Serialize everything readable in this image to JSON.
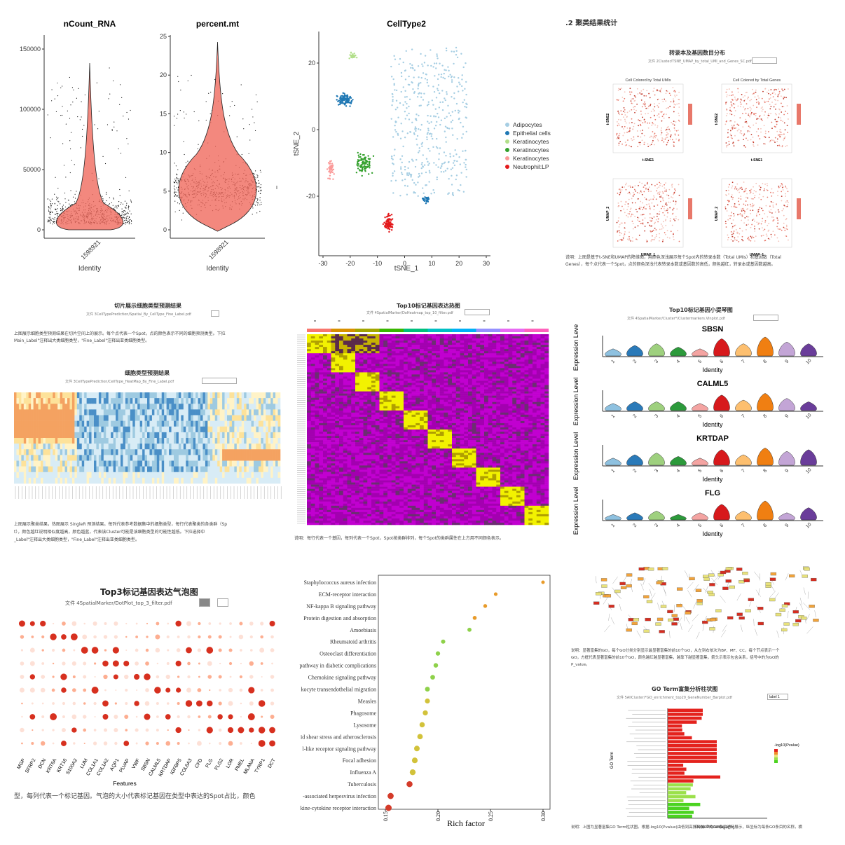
{
  "violin": {
    "panels": [
      {
        "title": "nCount_RNA",
        "yticks": [
          "150000",
          "100000",
          "50000",
          "0"
        ],
        "xtick": "1598921",
        "xlabel": "Identity"
      },
      {
        "title": "percent.mt",
        "yticks": [
          "25",
          "20",
          "15",
          "10",
          "5",
          "0"
        ],
        "xtick": "1598921",
        "xlabel": "Identity"
      }
    ],
    "color": "#f06a5e"
  },
  "tsne": {
    "title": "CellType2",
    "xlabel": "tSNE_1",
    "ylabel": "tSNE_2",
    "xticks": [
      "-30",
      "-20",
      "-10",
      "0",
      "10",
      "20",
      "30"
    ],
    "yticks": [
      "20",
      "0",
      "-20"
    ],
    "legend": [
      {
        "label": "Adipocytes",
        "color": "#a6cee3"
      },
      {
        "label": "Epithelial cells",
        "color": "#1f78b4"
      },
      {
        "label": "Keratinocytes",
        "color": "#b2df8a"
      },
      {
        "label": "Keratinocytes",
        "color": "#33a02c"
      },
      {
        "label": "Keratinocytes",
        "color": "#fb9a99"
      },
      {
        "label": "Neutrophil:LP",
        "color": "#e31a1c"
      }
    ]
  },
  "umap": {
    "section": ".2 聚类结果统计",
    "title": "转录本及基因数目分布",
    "file": "文件 2Cluster/TSNE_UMAP_by_total_UMI_and_Genes_SC.pdf",
    "sub_left": "Cell Colored by Total UMIs",
    "sub_right": "Cell Colored by Total Genes",
    "axis_tsne1": "t-SNE1",
    "axis_tsne2": "t-SNE2",
    "axis_umap1": "UMAP_1",
    "axis_umap2": "UMAP_2",
    "caption1": "说明：上图是基于t-SNE和UMAP的降维图，用颜色深浅展示每个Spot内的转录本数（Total UMIs）和基因数（Total",
    "caption2": "Genes），每个点代表一个Spot，点的颜色深浅代表转录本数或基因数的高低，颜色越红，转录本或基因数越高。"
  },
  "heatmap1": {
    "title1": "切片展示细胞类型预测结果",
    "file1": "文件 3CellTypePrediction/Spatial_By_CellType_Fine_Label.pdf",
    "desc1": "上图展示细胞类型预测结果在切片空间上的展示。每个点代表一个Spot，点的颜色表示不同的细胞预测类型。下拉",
    "desc2": "Main_Label\"注释出大类细胞类型，\"Fine_Label\"注释出亚类细胞类型。",
    "title2": "细胞类型预测结果",
    "file2": "文件 3CellTypePrediction/CellType_HeatMap_By_Fine_Label.pdf",
    "cap1": "上图展示聚类结果，热图展示 SingleR 预测结果。每列代表参考数据集中的细胞类型，每行代表聚类的各类群（Sp",
    "cap2": "t），颜色越红说明相似度越高，颜色越蓝，代表该Cluster可能是该细胞类型的可能性越低。下拉选择中",
    "cap3": "_Label\"注释出大类细胞类型，\"Fine_Label\"注释出亚类细胞类型。"
  },
  "heatmap2": {
    "title": "Top10标记基因表达热图",
    "file": "文件 4SpatialMarker/DoHeatmap_top_10_filter.pdf",
    "caption": "说明：每行代表一个基因，每列代表一个Spot，Spot按类群排列，每个Spot的类群属性在上方用不同颜色表示。",
    "cluster_colors": [
      "#f8766d",
      "#d89000",
      "#a3a500",
      "#39b600",
      "#00bf7d",
      "#00bfc4",
      "#00b0f6",
      "#9590ff",
      "#e76bf3",
      "#ff62bc"
    ]
  },
  "violins_small": {
    "title": "Top10标记基因小提琴图",
    "file": "文件 4SpatialMarker/Cluster*/Clustermarkers.Vlnplot.pdf",
    "ylabel": "Expression Level",
    "xlabel": "Identity",
    "genes": [
      "SBSN",
      "CALML5",
      "KRTDAP",
      "FLG"
    ],
    "clusters": [
      "1",
      "2",
      "3",
      "4",
      "5",
      "6",
      "7",
      "8",
      "9",
      "10"
    ],
    "colors": [
      "#8ec1e0",
      "#2a7ab9",
      "#9ed07e",
      "#2c9a3b",
      "#f4a4a2",
      "#d7191c",
      "#fdbf6f",
      "#f07f12",
      "#c3a5d6",
      "#6a3d9a"
    ]
  },
  "dotplot": {
    "title": "Top3标记基因表达气泡图",
    "file": "文件 4SpatialMarker/DotPlot_top_3_filter.pdf",
    "xlabel": "Features",
    "genes": [
      "MGP",
      "SFRP2",
      "DCN",
      "KRT6A",
      "KRT16",
      "S100A2",
      "LUM",
      "COL1A1",
      "COL1A2",
      "AQP1",
      "PLVAP",
      "VWF",
      "SBSN",
      "CALML5",
      "KRTDAP",
      "IGFBP5",
      "COL6A3",
      "CFD",
      "FLG",
      "FLG2",
      "LOR",
      "PMEL",
      "MLANA",
      "TYRP1",
      "DCT"
    ],
    "caption": "型，每列代表一个标记基因。气泡的大小代表标记基因在类型中表达的Spot占比，颜色"
  },
  "kegg": {
    "xlabel": "Rich factor",
    "xticks": [
      "0.15",
      "0.20",
      "0.25",
      "0.30"
    ],
    "pathways": [
      "Staphylococcus aureus infection",
      "ECM-receptor interaction",
      "NF-kappa B signaling pathway",
      "Protein digestion and absorption",
      "Amoebiasis",
      "Rheumatoid arthritis",
      "Osteoclast differentiation",
      "pathway in diabetic complications",
      "Chemokine signaling pathway",
      "kocyte transendothelial migration",
      "Measles",
      "Phagosome",
      "Lysosome",
      "id shear stress and atherosclerosis",
      "l-like receptor signaling pathway",
      "Focal adhesion",
      "Influenza A",
      "Tuberculosis",
      "-associated herpesvirus infection",
      "kine-cytokine receptor interaction"
    ],
    "rich": [
      0.3,
      0.255,
      0.245,
      0.235,
      0.23,
      0.205,
      0.2,
      0.198,
      0.195,
      0.19,
      0.19,
      0.188,
      0.185,
      0.183,
      0.18,
      0.178,
      0.176,
      0.173,
      0.155,
      0.153
    ]
  },
  "go": {
    "caption1": "说明：显著富集的GO，每个GO分类分别显示最显著富集的前10个GO，从左到右依次为BP、MF、CC，每个节点表示一个",
    "caption2": "GO，方框代表显著富集的前10个GO，颜色越红越显著富集，越靠下越显著富集，箭头示表示包含关系，括号中的为GO的",
    "caption3": "P_value。",
    "bar_title": "GO Term富集分析柱状图",
    "bar_file": "文件 5AllCluster/*GO_enrichment_top20_GeneNumber_Barplot.pdf",
    "bar_select": "label 1",
    "ylabel": "GO Term",
    "xlabel": "Gene Precentage(%)",
    "legend_title": "-log10(Pvalue)",
    "bar_caption": "说明：上图为显著富集GO Term柱状图。根据-log10(Pvalue)由低到高排列前20的GO条目进行展示，纵坐标为每条GO条目的名称，横"
  }
}
